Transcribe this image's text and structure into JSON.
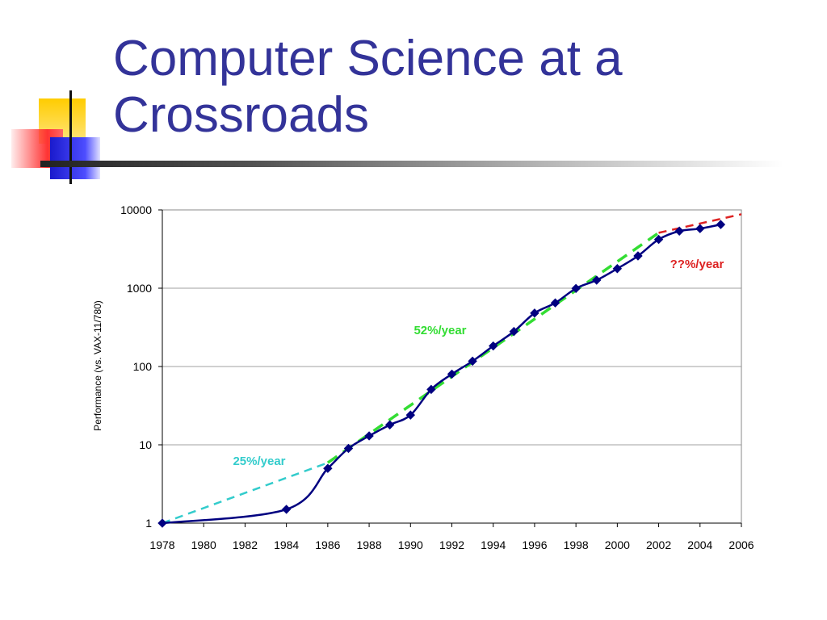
{
  "slide": {
    "title_lines": [
      "Computer Science at a",
      "Crossroads"
    ],
    "title_color": "#333399"
  },
  "chart_data": {
    "type": "line",
    "ylabel": "Performance (vs. VAX-11/780)",
    "xlabel": "",
    "y_scale": "log",
    "ylim": [
      1,
      10000
    ],
    "xlim": [
      1978,
      2006
    ],
    "y_ticks": [
      "1",
      "10",
      "100",
      "1000",
      "10000"
    ],
    "x_ticks": [
      "1978",
      "1980",
      "1982",
      "1984",
      "1986",
      "1988",
      "1990",
      "1992",
      "1994",
      "1996",
      "1998",
      "2000",
      "2002",
      "2004",
      "2006"
    ],
    "grid": "horizontal",
    "series": [
      {
        "color": "#000080",
        "marker": "diamond",
        "x": [
          1978,
          1984,
          1986,
          1987,
          1988,
          1989,
          1990,
          1991,
          1992,
          1993,
          1994,
          1995,
          1996,
          1997,
          1998,
          1999,
          2000,
          2001,
          2002,
          2003,
          2004,
          2005
        ],
        "y": [
          1,
          1.5,
          5,
          9,
          13,
          18,
          24,
          51,
          80,
          117,
          183,
          280,
          481,
          649,
          993,
          1267,
          1779,
          2584,
          4195,
          5364,
          5764,
          6505
        ]
      }
    ],
    "trend_lines": [
      {
        "label": "25%/year",
        "color": "#33CCCC",
        "x": [
          1978,
          1986
        ],
        "y": [
          1,
          5.9
        ]
      },
      {
        "label": "52%/year",
        "color": "#33DD33",
        "x": [
          1986,
          2002
        ],
        "y": [
          5.9,
          5100
        ]
      },
      {
        "label": "??%/year",
        "color": "#DD2222",
        "x": [
          2002,
          2006
        ],
        "y": [
          5100,
          8800
        ]
      }
    ]
  }
}
